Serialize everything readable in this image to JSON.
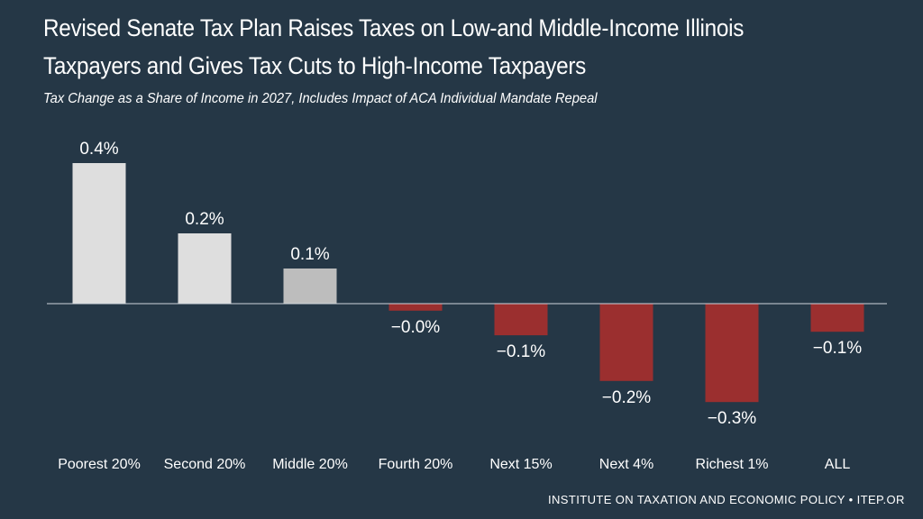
{
  "title_line1": "Revised Senate Tax Plan Raises Taxes on Low-and Middle-Income Illinois",
  "title_line2": "Taxpayers and Gives Tax Cuts to High-Income Taxpayers",
  "subtitle": "Tax Change as a Share of Income in 2027, Includes Impact of ACA Individual Mandate Repeal",
  "footer": "INSTITUTE ON TAXATION AND ECONOMIC POLICY • ITEP.OR",
  "colors": {
    "background": "#253746",
    "positive_bar": "#dedede",
    "positive_bar_small": "#bdbdbd",
    "negative_bar": "#9b2f2f",
    "axis": "#cfd6dc"
  },
  "chart_data": {
    "type": "bar",
    "title": "Revised Senate Tax Plan Raises Taxes on Low-and Middle-Income Illinois Taxpayers and Gives Tax Cuts to High-Income Taxpayers",
    "subtitle": "Tax Change as a Share of Income in 2027, Includes Impact of ACA Individual Mandate Repeal",
    "xlabel": "",
    "ylabel": "",
    "categories": [
      "Poorest 20%",
      "Second 20%",
      "Middle 20%",
      "Fourth 20%",
      "Next 15%",
      "Next 4%",
      "Richest 1%",
      "ALL"
    ],
    "values": [
      0.4,
      0.2,
      0.1,
      -0.02,
      -0.09,
      -0.22,
      -0.28,
      -0.08
    ],
    "data_labels": [
      "0.4%",
      "0.2%",
      "0.1%",
      "−0.0%",
      "−0.1%",
      "−0.2%",
      "−0.3%",
      "−0.1%"
    ],
    "ylim": [
      -0.35,
      0.45
    ],
    "grid": false,
    "legend": "none"
  }
}
